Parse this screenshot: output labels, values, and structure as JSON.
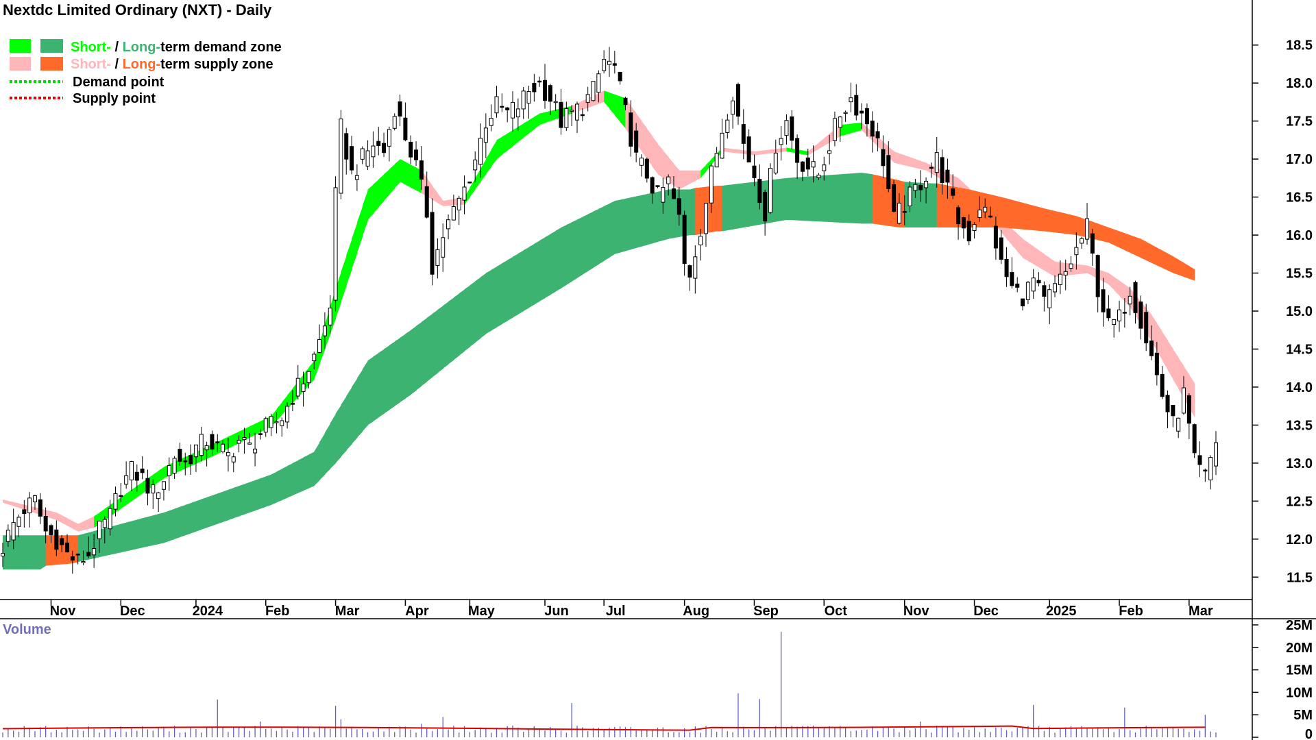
{
  "title": "Nextdc Limited Ordinary (NXT) - Daily",
  "legend": {
    "demand_zone": {
      "short": "Short-",
      "sep": " / ",
      "long": "Long-",
      "rest": "term demand zone"
    },
    "supply_zone": {
      "short": "Short-",
      "sep": " / ",
      "long": "Long-",
      "rest": "term supply zone"
    },
    "demand_point": "Demand point",
    "supply_point": "Supply point"
  },
  "volume_label": "Volume",
  "colors": {
    "short_demand": "#00ff00",
    "long_demand": "#3cb371",
    "short_supply": "#ffb6b9",
    "long_supply": "#ff6a2a",
    "demand_point": "#00dd00",
    "supply_point": "#ee0000",
    "candle": "#000000",
    "volume_bar": "#6060c0",
    "volume_avg": "#dd0000",
    "volume_text": "#6f6fb8"
  },
  "chart_data": [
    {
      "type": "candlestick",
      "title": "Nextdc Limited Ordinary (NXT) - Daily",
      "x_labels": [
        "Nov",
        "Dec",
        "2024",
        "Feb",
        "Mar",
        "Apr",
        "May",
        "Jun",
        "Jul",
        "Aug",
        "Sep",
        "Oct",
        "Nov",
        "Dec",
        "2025",
        "Feb",
        "Mar"
      ],
      "y_ticks": [
        "11.5",
        "12.0",
        "12.5",
        "13.0",
        "13.5",
        "14.0",
        "14.5",
        "15.0",
        "15.5",
        "16.0",
        "16.5",
        "17.0",
        "17.5",
        "18.0",
        "18.5"
      ],
      "ylim": [
        11.25,
        18.75
      ],
      "close": [
        {
          "x": 0,
          "y": 11.9
        },
        {
          "x": 2,
          "y": 12.2
        },
        {
          "x": 4,
          "y": 12.4
        },
        {
          "x": 6,
          "y": 12.5
        },
        {
          "x": 8,
          "y": 12.1
        },
        {
          "x": 10,
          "y": 12.0
        },
        {
          "x": 12,
          "y": 11.8
        },
        {
          "x": 14,
          "y": 11.7
        },
        {
          "x": 16,
          "y": 11.8
        },
        {
          "x": 18,
          "y": 12.1
        },
        {
          "x": 20,
          "y": 12.3
        },
        {
          "x": 22,
          "y": 12.7
        },
        {
          "x": 24,
          "y": 12.9
        },
        {
          "x": 26,
          "y": 12.8
        },
        {
          "x": 28,
          "y": 12.6
        },
        {
          "x": 30,
          "y": 12.8
        },
        {
          "x": 32,
          "y": 13.1
        },
        {
          "x": 34,
          "y": 13.0
        },
        {
          "x": 36,
          "y": 13.2
        },
        {
          "x": 38,
          "y": 13.3
        },
        {
          "x": 40,
          "y": 13.2
        },
        {
          "x": 42,
          "y": 13.1
        },
        {
          "x": 44,
          "y": 13.3
        },
        {
          "x": 46,
          "y": 13.2
        },
        {
          "x": 48,
          "y": 13.4
        },
        {
          "x": 50,
          "y": 13.5
        },
        {
          "x": 52,
          "y": 13.6
        },
        {
          "x": 54,
          "y": 13.9
        },
        {
          "x": 56,
          "y": 14.1
        },
        {
          "x": 58,
          "y": 14.4
        },
        {
          "x": 60,
          "y": 14.8
        },
        {
          "x": 61,
          "y": 15.1
        },
        {
          "x": 62,
          "y": 16.5
        },
        {
          "x": 63,
          "y": 17.4
        },
        {
          "x": 65,
          "y": 16.8
        },
        {
          "x": 67,
          "y": 17.0
        },
        {
          "x": 69,
          "y": 17.2
        },
        {
          "x": 71,
          "y": 17.1
        },
        {
          "x": 73,
          "y": 17.7
        },
        {
          "x": 75,
          "y": 17.3
        },
        {
          "x": 77,
          "y": 16.9
        },
        {
          "x": 79,
          "y": 16.3
        },
        {
          "x": 80,
          "y": 15.6
        },
        {
          "x": 82,
          "y": 16.0
        },
        {
          "x": 84,
          "y": 16.3
        },
        {
          "x": 86,
          "y": 16.6
        },
        {
          "x": 88,
          "y": 17.0
        },
        {
          "x": 90,
          "y": 17.5
        },
        {
          "x": 92,
          "y": 17.7
        },
        {
          "x": 94,
          "y": 17.6
        },
        {
          "x": 96,
          "y": 17.7
        },
        {
          "x": 98,
          "y": 17.9
        },
        {
          "x": 100,
          "y": 18.0
        },
        {
          "x": 102,
          "y": 17.8
        },
        {
          "x": 104,
          "y": 17.5
        },
        {
          "x": 106,
          "y": 17.6
        },
        {
          "x": 108,
          "y": 17.7
        },
        {
          "x": 110,
          "y": 17.9
        },
        {
          "x": 112,
          "y": 18.3
        },
        {
          "x": 114,
          "y": 18.2
        },
        {
          "x": 116,
          "y": 17.6
        },
        {
          "x": 118,
          "y": 17.0
        },
        {
          "x": 120,
          "y": 16.8
        },
        {
          "x": 122,
          "y": 16.5
        },
        {
          "x": 124,
          "y": 16.7
        },
        {
          "x": 126,
          "y": 16.2
        },
        {
          "x": 127,
          "y": 15.6
        },
        {
          "x": 128,
          "y": 15.5
        },
        {
          "x": 130,
          "y": 16.1
        },
        {
          "x": 132,
          "y": 16.8
        },
        {
          "x": 134,
          "y": 17.4
        },
        {
          "x": 136,
          "y": 17.9
        },
        {
          "x": 138,
          "y": 17.2
        },
        {
          "x": 140,
          "y": 16.8
        },
        {
          "x": 142,
          "y": 16.3
        },
        {
          "x": 144,
          "y": 17.2
        },
        {
          "x": 146,
          "y": 17.5
        },
        {
          "x": 148,
          "y": 17.0
        },
        {
          "x": 150,
          "y": 16.9
        },
        {
          "x": 152,
          "y": 16.8
        },
        {
          "x": 154,
          "y": 17.2
        },
        {
          "x": 156,
          "y": 17.6
        },
        {
          "x": 158,
          "y": 17.8
        },
        {
          "x": 160,
          "y": 17.6
        },
        {
          "x": 162,
          "y": 17.4
        },
        {
          "x": 164,
          "y": 17.0
        },
        {
          "x": 166,
          "y": 16.2
        },
        {
          "x": 168,
          "y": 16.4
        },
        {
          "x": 170,
          "y": 16.6
        },
        {
          "x": 172,
          "y": 16.8
        },
        {
          "x": 174,
          "y": 17.0
        },
        {
          "x": 176,
          "y": 16.6
        },
        {
          "x": 178,
          "y": 16.2
        },
        {
          "x": 180,
          "y": 16.0
        },
        {
          "x": 182,
          "y": 16.4
        },
        {
          "x": 184,
          "y": 16.2
        },
        {
          "x": 186,
          "y": 15.6
        },
        {
          "x": 188,
          "y": 15.3
        },
        {
          "x": 190,
          "y": 15.2
        },
        {
          "x": 192,
          "y": 15.4
        },
        {
          "x": 194,
          "y": 15.1
        },
        {
          "x": 196,
          "y": 15.3
        },
        {
          "x": 198,
          "y": 15.5
        },
        {
          "x": 200,
          "y": 15.8
        },
        {
          "x": 202,
          "y": 16.1
        },
        {
          "x": 204,
          "y": 15.3
        },
        {
          "x": 206,
          "y": 14.8
        },
        {
          "x": 208,
          "y": 14.9
        },
        {
          "x": 210,
          "y": 15.3
        },
        {
          "x": 212,
          "y": 14.9
        },
        {
          "x": 214,
          "y": 14.4
        },
        {
          "x": 216,
          "y": 13.9
        },
        {
          "x": 218,
          "y": 13.5
        },
        {
          "x": 220,
          "y": 13.9
        },
        {
          "x": 222,
          "y": 13.0
        },
        {
          "x": 224,
          "y": 12.8
        },
        {
          "x": 226,
          "y": 13.3
        }
      ],
      "short_term_zone": [
        {
          "x": 0,
          "a": 12.48,
          "b": 12.52,
          "state": "supply"
        },
        {
          "x": 10,
          "a": 12.25,
          "b": 12.35,
          "state": "supply"
        },
        {
          "x": 14,
          "a": 12.1,
          "b": 12.2,
          "state": "supply"
        },
        {
          "x": 17,
          "a": 12.15,
          "b": 12.3,
          "state": "demand"
        },
        {
          "x": 30,
          "a": 12.8,
          "b": 12.95,
          "state": "demand"
        },
        {
          "x": 40,
          "a": 13.12,
          "b": 13.28,
          "state": "demand"
        },
        {
          "x": 50,
          "a": 13.48,
          "b": 13.62,
          "state": "demand"
        },
        {
          "x": 58,
          "a": 14.1,
          "b": 14.35,
          "state": "demand"
        },
        {
          "x": 62,
          "a": 14.9,
          "b": 15.3,
          "state": "demand"
        },
        {
          "x": 68,
          "a": 16.2,
          "b": 16.6,
          "state": "demand"
        },
        {
          "x": 74,
          "a": 16.7,
          "b": 17.0,
          "state": "demand"
        },
        {
          "x": 78,
          "a": 16.55,
          "b": 16.85,
          "state": "supply"
        },
        {
          "x": 82,
          "a": 16.38,
          "b": 16.45,
          "state": "supply"
        },
        {
          "x": 86,
          "a": 16.4,
          "b": 16.5,
          "state": "demand"
        },
        {
          "x": 92,
          "a": 17.0,
          "b": 17.25,
          "state": "demand"
        },
        {
          "x": 100,
          "a": 17.45,
          "b": 17.6,
          "state": "demand"
        },
        {
          "x": 106,
          "a": 17.6,
          "b": 17.7,
          "state": "supply"
        },
        {
          "x": 112,
          "a": 17.75,
          "b": 17.9,
          "state": "demand"
        },
        {
          "x": 116,
          "a": 17.4,
          "b": 17.8,
          "state": "supply"
        },
        {
          "x": 122,
          "a": 16.8,
          "b": 17.2,
          "state": "supply"
        },
        {
          "x": 126,
          "a": 16.6,
          "b": 16.85,
          "state": "supply"
        },
        {
          "x": 130,
          "a": 16.75,
          "b": 16.85,
          "state": "demand"
        },
        {
          "x": 134,
          "a": 17.1,
          "b": 17.15,
          "state": "supply"
        },
        {
          "x": 140,
          "a": 17.05,
          "b": 17.1,
          "state": "supply"
        },
        {
          "x": 146,
          "a": 17.1,
          "b": 17.15,
          "state": "demand"
        },
        {
          "x": 150,
          "a": 17.05,
          "b": 17.1,
          "state": "supply"
        },
        {
          "x": 156,
          "a": 17.3,
          "b": 17.45,
          "state": "demand"
        },
        {
          "x": 160,
          "a": 17.38,
          "b": 17.48,
          "state": "supply"
        },
        {
          "x": 166,
          "a": 16.95,
          "b": 17.1,
          "state": "supply"
        },
        {
          "x": 172,
          "a": 16.85,
          "b": 16.95,
          "state": "supply"
        },
        {
          "x": 178,
          "a": 16.6,
          "b": 16.75,
          "state": "supply"
        },
        {
          "x": 184,
          "a": 16.2,
          "b": 16.35,
          "state": "supply"
        },
        {
          "x": 190,
          "a": 15.7,
          "b": 15.95,
          "state": "supply"
        },
        {
          "x": 196,
          "a": 15.45,
          "b": 15.65,
          "state": "supply"
        },
        {
          "x": 202,
          "a": 15.5,
          "b": 15.6,
          "state": "supply"
        },
        {
          "x": 206,
          "a": 15.35,
          "b": 15.5,
          "state": "supply"
        },
        {
          "x": 210,
          "a": 15.05,
          "b": 15.3,
          "state": "supply"
        },
        {
          "x": 214,
          "a": 14.6,
          "b": 14.95,
          "state": "supply"
        },
        {
          "x": 218,
          "a": 14.1,
          "b": 14.5,
          "state": "supply"
        },
        {
          "x": 222,
          "a": 13.6,
          "b": 14.05,
          "state": "supply"
        }
      ],
      "long_term_zone": [
        {
          "x": 0,
          "a": 11.6,
          "b": 12.05,
          "state": "demand"
        },
        {
          "x": 7,
          "a": 11.6,
          "b": 12.05,
          "state": "demand"
        },
        {
          "x": 8,
          "a": 11.65,
          "b": 12.05,
          "state": "supply"
        },
        {
          "x": 13,
          "a": 11.68,
          "b": 12.05,
          "state": "supply"
        },
        {
          "x": 14,
          "a": 11.7,
          "b": 12.05,
          "state": "demand"
        },
        {
          "x": 30,
          "a": 11.95,
          "b": 12.35,
          "state": "demand"
        },
        {
          "x": 50,
          "a": 12.45,
          "b": 12.85,
          "state": "demand"
        },
        {
          "x": 58,
          "a": 12.7,
          "b": 13.15,
          "state": "demand"
        },
        {
          "x": 62,
          "a": 13.0,
          "b": 13.65,
          "state": "demand"
        },
        {
          "x": 68,
          "a": 13.5,
          "b": 14.35,
          "state": "demand"
        },
        {
          "x": 76,
          "a": 13.9,
          "b": 14.75,
          "state": "demand"
        },
        {
          "x": 90,
          "a": 14.7,
          "b": 15.5,
          "state": "demand"
        },
        {
          "x": 104,
          "a": 15.3,
          "b": 16.1,
          "state": "demand"
        },
        {
          "x": 114,
          "a": 15.75,
          "b": 16.45,
          "state": "demand"
        },
        {
          "x": 124,
          "a": 15.95,
          "b": 16.6,
          "state": "demand"
        },
        {
          "x": 128,
          "a": 16.0,
          "b": 16.6,
          "state": "demand"
        },
        {
          "x": 129,
          "a": 16.0,
          "b": 16.62,
          "state": "supply"
        },
        {
          "x": 133,
          "a": 16.05,
          "b": 16.65,
          "state": "supply"
        },
        {
          "x": 134,
          "a": 16.05,
          "b": 16.65,
          "state": "demand"
        },
        {
          "x": 146,
          "a": 16.2,
          "b": 16.75,
          "state": "demand"
        },
        {
          "x": 160,
          "a": 16.15,
          "b": 16.82,
          "state": "demand"
        },
        {
          "x": 162,
          "a": 16.15,
          "b": 16.8,
          "state": "supply"
        },
        {
          "x": 167,
          "a": 16.1,
          "b": 16.72,
          "state": "supply"
        },
        {
          "x": 168,
          "a": 16.1,
          "b": 16.7,
          "state": "demand"
        },
        {
          "x": 173,
          "a": 16.1,
          "b": 16.68,
          "state": "demand"
        },
        {
          "x": 174,
          "a": 16.1,
          "b": 16.68,
          "state": "supply"
        },
        {
          "x": 180,
          "a": 16.1,
          "b": 16.6,
          "state": "supply"
        },
        {
          "x": 186,
          "a": 16.1,
          "b": 16.5,
          "state": "supply"
        },
        {
          "x": 194,
          "a": 16.05,
          "b": 16.35,
          "state": "supply"
        },
        {
          "x": 200,
          "a": 16.0,
          "b": 16.25,
          "state": "supply"
        },
        {
          "x": 206,
          "a": 15.9,
          "b": 16.1,
          "state": "supply"
        },
        {
          "x": 212,
          "a": 15.7,
          "b": 15.95,
          "state": "supply"
        },
        {
          "x": 218,
          "a": 15.5,
          "b": 15.72,
          "state": "supply"
        },
        {
          "x": 222,
          "a": 15.4,
          "b": 15.55,
          "state": "supply"
        }
      ]
    },
    {
      "type": "bar",
      "title": "Volume",
      "y_ticks": [
        "0",
        "5M",
        "10M",
        "15M",
        "20M",
        "25M"
      ],
      "ylim": [
        0,
        25
      ],
      "unit": "M",
      "average": 1.9,
      "spikes": [
        {
          "x": 40,
          "v": 8.4
        },
        {
          "x": 48,
          "v": 3.5
        },
        {
          "x": 62,
          "v": 7.0
        },
        {
          "x": 63,
          "v": 4.0
        },
        {
          "x": 78,
          "v": 3.0
        },
        {
          "x": 82,
          "v": 4.5
        },
        {
          "x": 106,
          "v": 7.6
        },
        {
          "x": 137,
          "v": 9.8
        },
        {
          "x": 141,
          "v": 8.5
        },
        {
          "x": 145,
          "v": 23.5
        },
        {
          "x": 171,
          "v": 3.5
        },
        {
          "x": 192,
          "v": 7.2
        },
        {
          "x": 209,
          "v": 6.6
        },
        {
          "x": 224,
          "v": 5.0
        }
      ]
    }
  ]
}
